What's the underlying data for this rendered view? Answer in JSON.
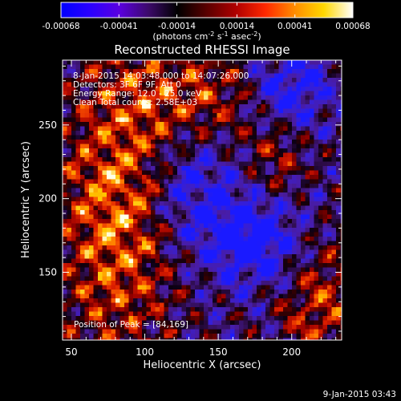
{
  "colorbar": {
    "tick_labels": [
      "-0.00068",
      "-0.00041",
      "-0.00014",
      "0.00014",
      "0.00041",
      "0.00068"
    ],
    "tick_values": [
      -0.00068,
      -0.00041,
      -0.00014,
      0.00014,
      0.00041,
      0.00068
    ],
    "range": [
      -0.00068,
      0.00068
    ],
    "units_parts": [
      "(photons cm",
      "-2",
      " s",
      "-1",
      " asec",
      "-2",
      ")"
    ],
    "colors": [
      "#0000ff",
      "#2a00ff",
      "#5a00e0",
      "#3c0a6a",
      "#000000",
      "#5a0000",
      "#b00000",
      "#ff2800",
      "#ff8c00",
      "#ffd700",
      "#ffffff"
    ]
  },
  "chart_data": {
    "type": "heatmap",
    "title": "Reconstructed RHESSI Image",
    "xlabel": "Heliocentric X (arcsec)",
    "ylabel": "Heliocentric Y (arcsec)",
    "xlim": [
      44,
      234
    ],
    "ylim": [
      104,
      294
    ],
    "xticks": [
      50,
      100,
      150,
      200
    ],
    "yticks": [
      150,
      200,
      250
    ],
    "annotations": [
      "8-Jan-2015 14:03:48.000 to 14:07:26.000",
      "Detectors: 3F 6F 9F, Att 0",
      "Energy Range: 12.0 - 25.0 keV",
      "Clean    Total counts: 2.58E+03"
    ],
    "peak_label": "Position of Peak = [84,169]",
    "peak": [
      84,
      169
    ]
  },
  "footer": {
    "timestamp": "9-Jan-2015 03:43"
  }
}
